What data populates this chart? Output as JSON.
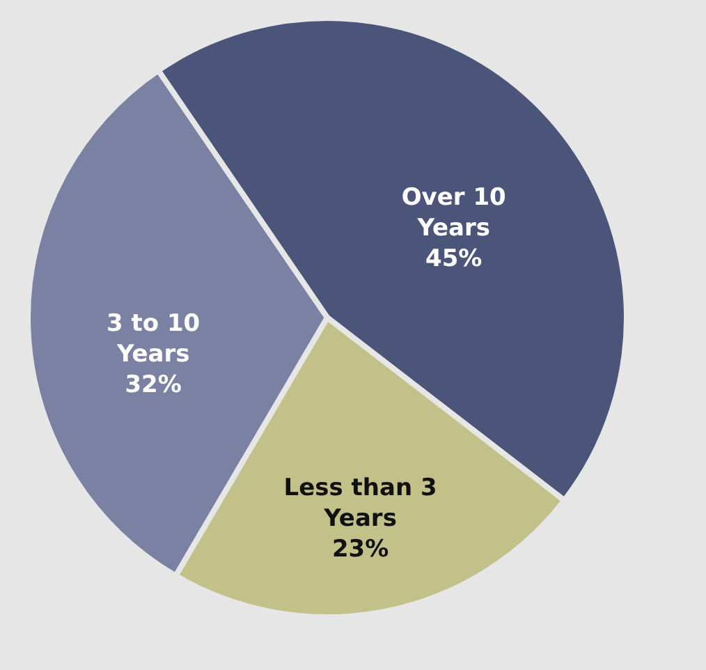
{
  "chart_data": {
    "type": "pie",
    "categories": [
      "Over 10 Years",
      "Less than 3 Years",
      "3 to 10 Years"
    ],
    "values": [
      45,
      23,
      32
    ],
    "colors": [
      "#4b5579",
      "#c3c18a",
      "#7b81a3"
    ],
    "value_labels": [
      "45%",
      "23%",
      "32%"
    ]
  }
}
